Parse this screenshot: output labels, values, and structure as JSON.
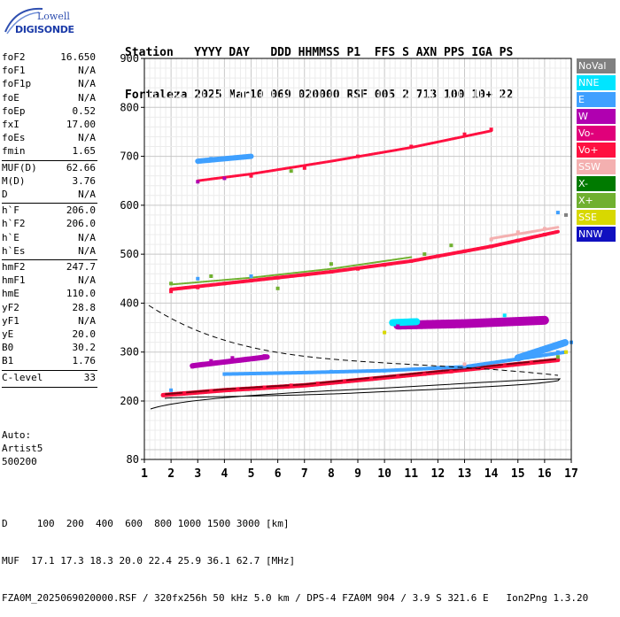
{
  "logo": {
    "line1": "Lowell",
    "line2": "DIGISONDE"
  },
  "header": {
    "labels": "Station   YYYY DAY   DDD HHMMSS P1  FFS S AXN PPS IGA PS",
    "values": "Fortaleza 2025 Mar10 069 020000 RSF 005 2 713 100 10+ 22"
  },
  "params": [
    {
      "k": "foF2",
      "v": "16.650"
    },
    {
      "k": "foF1",
      "v": "N/A"
    },
    {
      "k": "foF1p",
      "v": "N/A"
    },
    {
      "k": "foE",
      "v": "N/A"
    },
    {
      "k": "foEp",
      "v": "0.52"
    },
    {
      "k": "fxI",
      "v": "17.00"
    },
    {
      "k": "foEs",
      "v": "N/A"
    },
    {
      "k": "fmin",
      "v": "1.65"
    },
    {
      "k": "MUF(D)",
      "v": "62.66"
    },
    {
      "k": "M(D)",
      "v": "3.76"
    },
    {
      "k": "D",
      "v": "N/A"
    },
    {
      "k": "h`F",
      "v": "206.0"
    },
    {
      "k": "h`F2",
      "v": "206.0"
    },
    {
      "k": "h`E",
      "v": "N/A"
    },
    {
      "k": "h`Es",
      "v": "N/A"
    },
    {
      "k": "hmF2",
      "v": "247.7"
    },
    {
      "k": "hmF1",
      "v": "N/A"
    },
    {
      "k": "hmE",
      "v": "110.0"
    },
    {
      "k": "yF2",
      "v": "28.8"
    },
    {
      "k": "yF1",
      "v": "N/A"
    },
    {
      "k": "yE",
      "v": "20.0"
    },
    {
      "k": "B0",
      "v": "30.2"
    },
    {
      "k": "B1",
      "v": "1.76"
    },
    {
      "k": "C-level",
      "v": "33"
    }
  ],
  "auto": {
    "line1": "Auto:",
    "line2": "Artist5",
    "line3": "500200"
  },
  "footer": {
    "line1": "D     100  200  400  600  800 1000 1500 3000 [km]",
    "line2": "MUF  17.1 17.3 18.3 20.0 22.4 25.9 36.1 62.7 [MHz]",
    "line3": "FZA0M_2025069020000.RSF / 320fx256h 50 kHz 5.0 km / DPS-4 FZA0M 904 / 3.9 S 321.6 E   Ion2Png 1.3.20"
  },
  "legend": [
    {
      "label": "NoVal",
      "bg": "#808080",
      "fg": "#ffffff"
    },
    {
      "label": "NNE",
      "bg": "#00e5ff",
      "fg": "#ffffff"
    },
    {
      "label": "E",
      "bg": "#3fa0ff",
      "fg": "#ffffff"
    },
    {
      "label": "W",
      "bg": "#b000b0",
      "fg": "#ffffff"
    },
    {
      "label": "Vo-",
      "bg": "#e0007a",
      "fg": "#ffffff"
    },
    {
      "label": "Vo+",
      "bg": "#ff1040",
      "fg": "#ffffff"
    },
    {
      "label": "SSW",
      "bg": "#f4b0b0",
      "fg": "#ffffff"
    },
    {
      "label": "X-",
      "bg": "#007a00",
      "fg": "#ffffff"
    },
    {
      "label": "X+",
      "bg": "#70b030",
      "fg": "#ffffff"
    },
    {
      "label": "SSE",
      "bg": "#d8d800",
      "fg": "#ffffff"
    },
    {
      "label": "NNW",
      "bg": "#1010c0",
      "fg": "#ffffff"
    }
  ],
  "chart_data": {
    "type": "scatter",
    "title": "",
    "xlabel": "",
    "ylabel": "",
    "xlim": [
      1,
      17
    ],
    "ylim": [
      80,
      900
    ],
    "x_ticks": [
      "1",
      "2",
      "3",
      "4",
      "5",
      "6",
      "7",
      "8",
      "9",
      "10",
      "11",
      "12",
      "13",
      "14",
      "15",
      "16",
      "17"
    ],
    "y_ticks": [
      "80",
      "200",
      "300",
      "400",
      "500",
      "600",
      "700",
      "800",
      "900"
    ],
    "grid": true,
    "legend_position": "right",
    "series": [
      {
        "name": "Vo+",
        "color": "#ff1040",
        "points": [
          [
            1.7,
            212
          ],
          [
            2.5,
            216
          ],
          [
            3.5,
            220
          ],
          [
            4.5,
            224
          ],
          [
            5.5,
            228
          ],
          [
            6.5,
            232
          ],
          [
            7.5,
            236
          ],
          [
            8.5,
            240
          ],
          [
            9.5,
            245
          ],
          [
            10.5,
            250
          ],
          [
            11.5,
            255
          ],
          [
            12.5,
            260
          ],
          [
            13.5,
            266
          ],
          [
            14.5,
            272
          ],
          [
            15.5,
            278
          ],
          [
            16.5,
            284
          ],
          [
            2.0,
            424
          ],
          [
            3.0,
            432
          ],
          [
            4.0,
            440
          ],
          [
            5.0,
            446
          ],
          [
            6.0,
            452
          ],
          [
            7.0,
            458
          ],
          [
            8.0,
            464
          ],
          [
            9.0,
            470
          ],
          [
            10.0,
            478
          ],
          [
            11.0,
            486
          ],
          [
            12.0,
            496
          ],
          [
            13.0,
            506
          ],
          [
            14.0,
            516
          ],
          [
            15.0,
            528
          ],
          [
            16.0,
            540
          ],
          [
            5.0,
            660
          ],
          [
            7.0,
            676
          ],
          [
            9.0,
            700
          ],
          [
            11.0,
            720
          ],
          [
            13.0,
            745
          ],
          [
            14.0,
            755
          ]
        ]
      },
      {
        "name": "E",
        "color": "#3fa0ff",
        "points": [
          [
            2.0,
            222
          ],
          [
            4.0,
            255
          ],
          [
            6.0,
            257
          ],
          [
            8.0,
            260
          ],
          [
            10.0,
            262
          ],
          [
            12.0,
            268
          ],
          [
            15.0,
            286
          ],
          [
            16.5,
            300
          ],
          [
            17.0,
            320
          ],
          [
            3.0,
            450
          ],
          [
            5.0,
            455
          ],
          [
            3.5,
            695
          ],
          [
            5.0,
            700
          ],
          [
            16.5,
            585
          ]
        ]
      },
      {
        "name": "W",
        "color": "#b000b0",
        "points": [
          [
            2.8,
            270
          ],
          [
            3.5,
            282
          ],
          [
            4.3,
            288
          ],
          [
            5.5,
            292
          ],
          [
            10.5,
            355
          ],
          [
            12.5,
            360
          ],
          [
            14.5,
            362
          ],
          [
            16.0,
            365
          ],
          [
            3.0,
            648
          ],
          [
            4.0,
            655
          ]
        ]
      },
      {
        "name": "NNE",
        "color": "#00e5ff",
        "points": [
          [
            10.5,
            360
          ],
          [
            11.0,
            365
          ],
          [
            14.5,
            375
          ]
        ]
      },
      {
        "name": "X+",
        "color": "#70b030",
        "points": [
          [
            2.0,
            440
          ],
          [
            3.5,
            455
          ],
          [
            8.0,
            480
          ],
          [
            11.5,
            500
          ],
          [
            12.5,
            518
          ],
          [
            16.5,
            290
          ],
          [
            6.0,
            430
          ],
          [
            6.5,
            670
          ]
        ]
      },
      {
        "name": "SSW",
        "color": "#f4b0b0",
        "points": [
          [
            13.0,
            275
          ],
          [
            14.0,
            530
          ],
          [
            15.0,
            545
          ],
          [
            16.0,
            552
          ]
        ]
      },
      {
        "name": "SSE",
        "color": "#d8d800",
        "points": [
          [
            10.0,
            340
          ],
          [
            16.8,
            300
          ]
        ]
      },
      {
        "name": "NoVal",
        "color": "#808080",
        "points": [
          [
            16.8,
            580
          ]
        ]
      }
    ]
  }
}
